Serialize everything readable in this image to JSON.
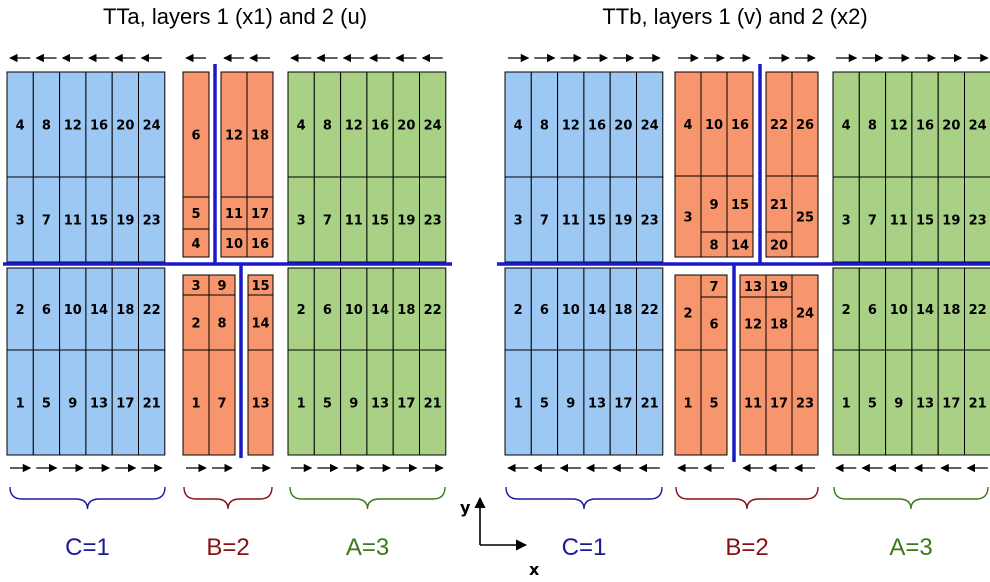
{
  "titles": {
    "left": "TTa, layers 1 (x1) and 2 (u)",
    "right": "TTb, layers 1 (v) and 2 (x2)"
  },
  "colors": {
    "C": "#9dc8f4",
    "B": "#f7956c",
    "A": "#a8d185",
    "beam": "#1a1acc",
    "C_label": "#1a1a99",
    "B_label": "#881111",
    "A_label": "#3a7a1a",
    "outline": "#000000"
  },
  "axes": {
    "y": "y",
    "x": "x"
  },
  "left_panel": {
    "C": {
      "top": [
        "4",
        "8",
        "12",
        "16",
        "20",
        "24",
        "3",
        "7",
        "11",
        "15",
        "19",
        "23"
      ],
      "bottom": [
        "2",
        "6",
        "10",
        "14",
        "18",
        "22",
        "1",
        "5",
        "9",
        "13",
        "17",
        "21"
      ]
    },
    "B": {
      "top": [
        "6",
        "12",
        "18",
        "5",
        "11",
        "17",
        "4",
        "10",
        "16"
      ],
      "bottom": [
        "3",
        "9",
        "15",
        "2",
        "8",
        "14",
        "1",
        "7",
        "13"
      ]
    },
    "A": {
      "top": [
        "4",
        "8",
        "12",
        "16",
        "20",
        "24",
        "3",
        "7",
        "11",
        "15",
        "19",
        "23"
      ],
      "bottom": [
        "2",
        "6",
        "10",
        "14",
        "18",
        "22",
        "1",
        "5",
        "9",
        "13",
        "17",
        "21"
      ]
    },
    "groups": [
      {
        "label": "C=1",
        "color": "#1a1a99"
      },
      {
        "label": "B=2",
        "color": "#881111"
      },
      {
        "label": "A=3",
        "color": "#3a7a1a"
      }
    ]
  },
  "right_panel": {
    "C": {
      "top": [
        "4",
        "8",
        "12",
        "16",
        "20",
        "24",
        "3",
        "7",
        "11",
        "15",
        "19",
        "23"
      ],
      "bottom": [
        "2",
        "6",
        "10",
        "14",
        "18",
        "22",
        "1",
        "5",
        "9",
        "13",
        "17",
        "21"
      ]
    },
    "B": {
      "top": [
        "4",
        "10",
        "16",
        "22",
        "26",
        "3",
        "9",
        "15",
        "21",
        "25",
        "8",
        "14",
        "20"
      ],
      "bottom": [
        "7",
        "13",
        "19",
        "2",
        "6",
        "12",
        "18",
        "24",
        "1",
        "5",
        "11",
        "17",
        "23"
      ]
    },
    "A": {
      "top": [
        "4",
        "8",
        "12",
        "16",
        "20",
        "24",
        "3",
        "7",
        "11",
        "15",
        "19",
        "23"
      ],
      "bottom": [
        "2",
        "6",
        "10",
        "14",
        "18",
        "22",
        "1",
        "5",
        "9",
        "13",
        "17",
        "21"
      ]
    },
    "groups": [
      {
        "label": "C=1",
        "color": "#1a1a99"
      },
      {
        "label": "B=2",
        "color": "#881111"
      },
      {
        "label": "A=3",
        "color": "#3a7a1a"
      }
    ]
  }
}
